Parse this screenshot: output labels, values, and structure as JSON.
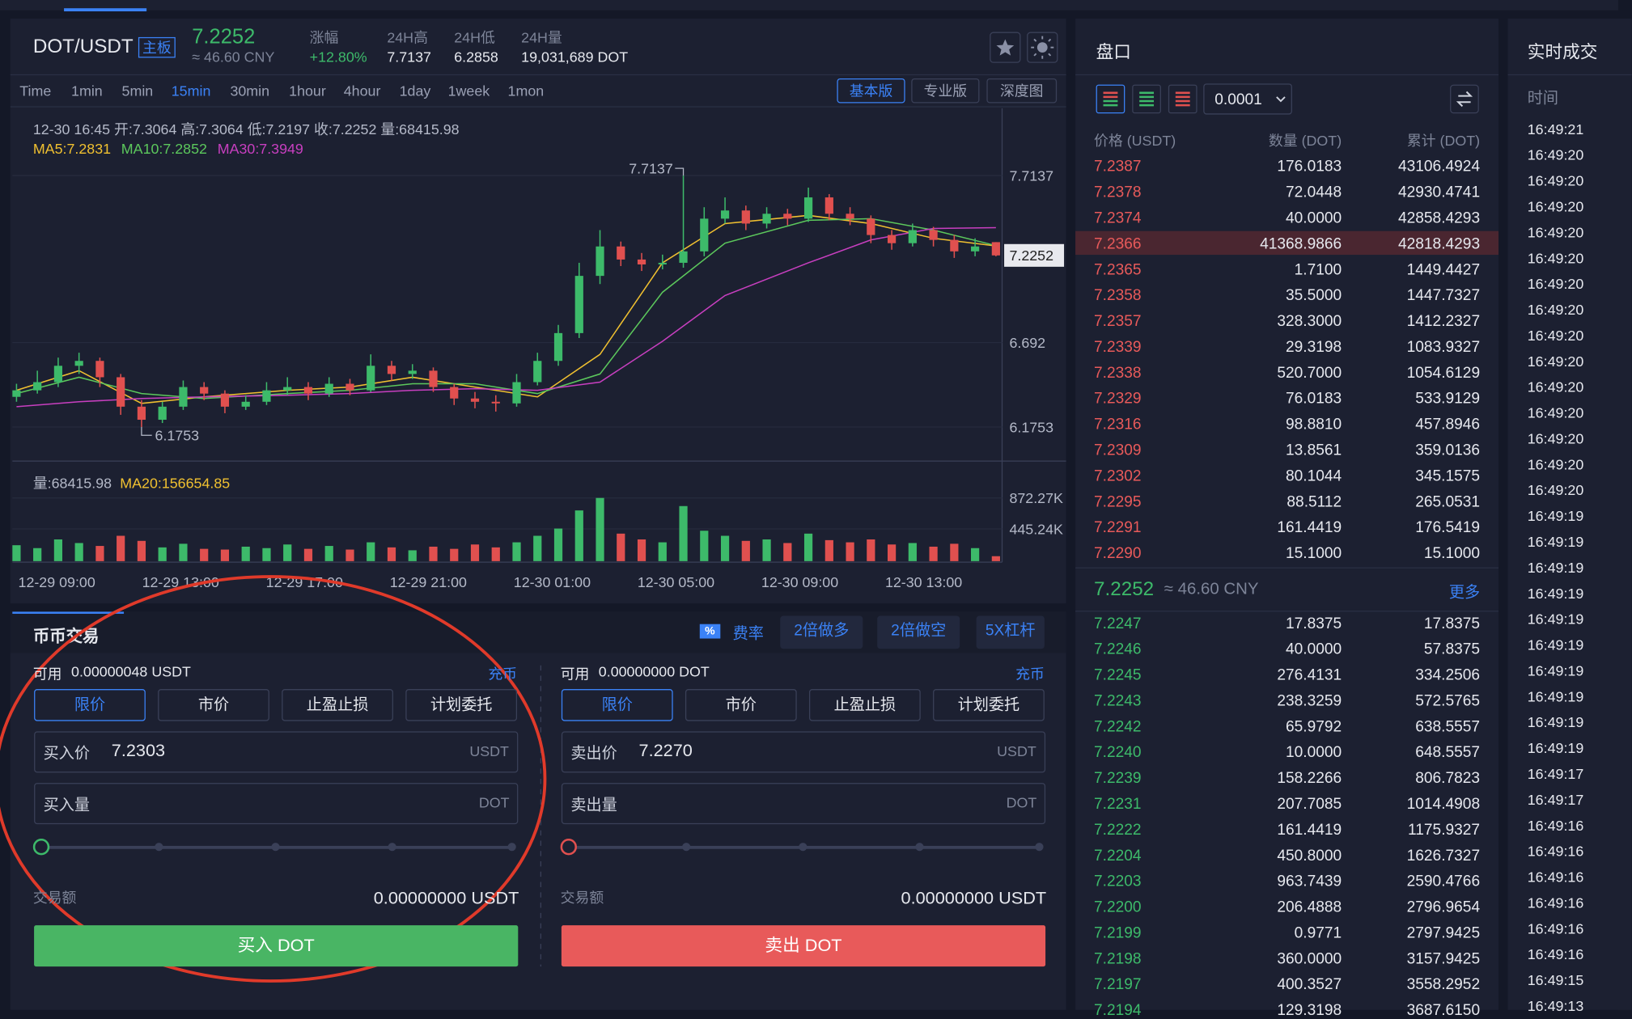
{
  "header": {
    "pair": "DOT/USDT",
    "board": "主板",
    "price": "7.2252",
    "cny": "≈ 46.60 CNY",
    "change_label": "涨幅",
    "change": "+12.80%",
    "high_label": "24H高",
    "high": "7.7137",
    "low_label": "24H低",
    "low": "6.2858",
    "vol_label": "24H量",
    "vol": "19,031,689 DOT"
  },
  "intervals": [
    "Time",
    "1min",
    "5min",
    "15min",
    "30min",
    "1hour",
    "4hour",
    "1day",
    "1week",
    "1mon"
  ],
  "active_interval": 3,
  "views": [
    "基本版",
    "专业版",
    "深度图"
  ],
  "chart_data": {
    "type": "candlestick",
    "info": "12-30 16:45  开:7.3064  高:7.3064  低:7.2197  收:7.2252  量:68415.98",
    "up_color": "#3dba6a",
    "down_color": "#e0504f",
    "candles": [
      [
        6.36,
        6.44,
        6.33,
        6.4
      ],
      [
        6.4,
        6.52,
        6.38,
        6.45
      ],
      [
        6.45,
        6.6,
        6.42,
        6.55
      ],
      [
        6.55,
        6.63,
        6.5,
        6.58
      ],
      [
        6.58,
        6.6,
        6.42,
        6.48
      ],
      [
        6.48,
        6.5,
        6.25,
        6.3
      ],
      [
        6.3,
        6.34,
        6.1753,
        6.22
      ],
      [
        6.22,
        6.33,
        6.2,
        6.3
      ],
      [
        6.3,
        6.46,
        6.28,
        6.42
      ],
      [
        6.42,
        6.45,
        6.34,
        6.38
      ],
      [
        6.38,
        6.4,
        6.26,
        6.3
      ],
      [
        6.3,
        6.37,
        6.28,
        6.33
      ],
      [
        6.33,
        6.45,
        6.31,
        6.4
      ],
      [
        6.4,
        6.48,
        6.37,
        6.42
      ],
      [
        6.42,
        6.45,
        6.34,
        6.38
      ],
      [
        6.38,
        6.48,
        6.36,
        6.44
      ],
      [
        6.44,
        6.47,
        6.37,
        6.4
      ],
      [
        6.4,
        6.62,
        6.39,
        6.55
      ],
      [
        6.55,
        6.58,
        6.46,
        6.5
      ],
      [
        6.5,
        6.56,
        6.47,
        6.52
      ],
      [
        6.52,
        6.54,
        6.39,
        6.42
      ],
      [
        6.42,
        6.44,
        6.31,
        6.35
      ],
      [
        6.35,
        6.39,
        6.29,
        6.33
      ],
      [
        6.33,
        6.37,
        6.27,
        6.32
      ],
      [
        6.32,
        6.5,
        6.3,
        6.45
      ],
      [
        6.45,
        6.63,
        6.43,
        6.58
      ],
      [
        6.58,
        6.8,
        6.55,
        6.75
      ],
      [
        6.75,
        7.18,
        6.72,
        7.1
      ],
      [
        7.1,
        7.38,
        7.05,
        7.28
      ],
      [
        7.28,
        7.31,
        7.16,
        7.2
      ],
      [
        7.2,
        7.24,
        7.13,
        7.17
      ],
      [
        7.17,
        7.23,
        7.14,
        7.18
      ],
      [
        7.18,
        7.7137,
        7.15,
        7.25
      ],
      [
        7.25,
        7.52,
        7.22,
        7.45
      ],
      [
        7.45,
        7.58,
        7.42,
        7.5
      ],
      [
        7.5,
        7.53,
        7.38,
        7.42
      ],
      [
        7.42,
        7.52,
        7.39,
        7.48
      ],
      [
        7.48,
        7.51,
        7.41,
        7.45
      ],
      [
        7.45,
        7.64,
        7.43,
        7.58
      ],
      [
        7.58,
        7.6,
        7.44,
        7.48
      ],
      [
        7.48,
        7.52,
        7.41,
        7.45
      ],
      [
        7.45,
        7.47,
        7.3,
        7.35
      ],
      [
        7.35,
        7.38,
        7.26,
        7.3
      ],
      [
        7.3,
        7.42,
        7.28,
        7.38
      ],
      [
        7.38,
        7.4,
        7.28,
        7.32
      ],
      [
        7.32,
        7.35,
        7.21,
        7.25
      ],
      [
        7.25,
        7.33,
        7.22,
        7.28
      ],
      [
        7.3064,
        7.3064,
        7.2197,
        7.2252
      ]
    ],
    "ma": [
      {
        "label": "MA5:7.2831",
        "color": "#f0c030",
        "values": [
          6.4,
          6.52,
          6.32,
          6.36,
          6.4,
          6.42,
          6.48,
          6.42,
          6.36,
          6.62,
          7.18,
          7.42,
          7.47,
          7.42,
          7.33,
          7.2831
        ]
      },
      {
        "label": "MA10:7.2852",
        "color": "#5cc85c",
        "values": [
          6.38,
          6.48,
          6.38,
          6.35,
          6.38,
          6.4,
          6.44,
          6.44,
          6.38,
          6.5,
          7.0,
          7.3,
          7.44,
          7.45,
          7.38,
          7.2852
        ]
      },
      {
        "label": "MA30:7.3949",
        "color": "#c83fc0",
        "values": [
          6.3,
          6.33,
          6.35,
          6.36,
          6.37,
          6.38,
          6.4,
          6.41,
          6.4,
          6.45,
          6.7,
          6.98,
          7.18,
          7.32,
          7.39,
          7.3949
        ]
      }
    ],
    "ylim": [
      5.967,
      8.125
    ],
    "yticks": [
      6.1753,
      6.692,
      7.7137
    ],
    "volume": {
      "label": "量:68415.98",
      "ma_label": "MA20:156654.85",
      "values": [
        220000,
        180000,
        300000,
        250000,
        210000,
        350000,
        280000,
        190000,
        240000,
        170000,
        160000,
        200000,
        180000,
        230000,
        170000,
        210000,
        160000,
        260000,
        190000,
        150000,
        200000,
        170000,
        230000,
        190000,
        260000,
        350000,
        450000,
        700000,
        872270,
        380000,
        300000,
        260000,
        760000,
        420000,
        350000,
        280000,
        300000,
        250000,
        380000,
        290000,
        260000,
        300000,
        230000,
        250000,
        200000,
        240000,
        180000,
        68415.98
      ],
      "ylim": [
        0,
        1338000
      ],
      "yticks": [
        {
          "value": 445240,
          "label": "445.24K"
        },
        {
          "value": 872270,
          "label": "872.27K"
        }
      ]
    },
    "time_labels": [
      "12-29 09:00",
      "12-29 13:00",
      "12-29 17:00",
      "12-29 21:00",
      "12-30 01:00",
      "12-30 05:00",
      "12-30 09:00",
      "12-30 13:00"
    ]
  },
  "trade": {
    "tab": "币币交易",
    "fee_icon": "%",
    "fee": "费率",
    "actions": [
      "2倍做多",
      "2倍做空",
      "5X杠杆"
    ],
    "buy": {
      "avail_label": "可用",
      "avail": "0.00000048 USDT",
      "deposit": "充币",
      "order_types": [
        "限价",
        "市价",
        "止盈止损",
        "计划委托"
      ],
      "price_label": "买入价",
      "price": "7.2303",
      "price_unit": "USDT",
      "amount_label": "买入量",
      "amount_unit": "DOT",
      "total_label": "交易额",
      "total": "0.00000000 USDT",
      "submit": "买入 DOT"
    },
    "sell": {
      "avail_label": "可用",
      "avail": "0.00000000 DOT",
      "deposit": "充币",
      "order_types": [
        "限价",
        "市价",
        "止盈止损",
        "计划委托"
      ],
      "price_label": "卖出价",
      "price": "7.2270",
      "price_unit": "USDT",
      "amount_label": "卖出量",
      "amount_unit": "DOT",
      "total_label": "交易额",
      "total": "0.00000000 USDT",
      "submit": "卖出 DOT"
    }
  },
  "orderbook": {
    "title": "盘口",
    "precision": "0.0001",
    "headers": [
      "价格 (USDT)",
      "数量 (DOT)",
      "累计 (DOT)"
    ],
    "asks": [
      [
        "7.2387",
        "176.0183",
        "43106.4924"
      ],
      [
        "7.2378",
        "72.0448",
        "42930.4741"
      ],
      [
        "7.2374",
        "40.0000",
        "42858.4293"
      ],
      [
        "7.2366",
        "41368.9866",
        "42818.4293"
      ],
      [
        "7.2365",
        "1.7100",
        "1449.4427"
      ],
      [
        "7.2358",
        "35.5000",
        "1447.7327"
      ],
      [
        "7.2357",
        "328.3000",
        "1412.2327"
      ],
      [
        "7.2339",
        "29.3198",
        "1083.9327"
      ],
      [
        "7.2338",
        "520.7000",
        "1054.6129"
      ],
      [
        "7.2329",
        "76.0183",
        "533.9129"
      ],
      [
        "7.2316",
        "98.8810",
        "457.8946"
      ],
      [
        "7.2309",
        "13.8561",
        "359.0136"
      ],
      [
        "7.2302",
        "80.1044",
        "345.1575"
      ],
      [
        "7.2295",
        "88.5112",
        "265.0531"
      ],
      [
        "7.2291",
        "161.4419",
        "176.5419"
      ],
      [
        "7.2290",
        "15.1000",
        "15.1000"
      ]
    ],
    "mid_price": "7.2252",
    "mid_cny": "≈ 46.60 CNY",
    "more": "更多",
    "bids": [
      [
        "7.2247",
        "17.8375",
        "17.8375"
      ],
      [
        "7.2246",
        "40.0000",
        "57.8375"
      ],
      [
        "7.2245",
        "276.4131",
        "334.2506"
      ],
      [
        "7.2243",
        "238.3259",
        "572.5765"
      ],
      [
        "7.2242",
        "65.9792",
        "638.5557"
      ],
      [
        "7.2240",
        "10.0000",
        "648.5557"
      ],
      [
        "7.2239",
        "158.2266",
        "806.7823"
      ],
      [
        "7.2231",
        "207.7085",
        "1014.4908"
      ],
      [
        "7.2222",
        "161.4419",
        "1175.9327"
      ],
      [
        "7.2204",
        "450.8000",
        "1626.7327"
      ],
      [
        "7.2203",
        "963.7439",
        "2590.4766"
      ],
      [
        "7.2200",
        "206.4888",
        "2796.9654"
      ],
      [
        "7.2199",
        "0.9771",
        "2797.9425"
      ],
      [
        "7.2198",
        "360.0000",
        "3157.9425"
      ],
      [
        "7.2197",
        "400.3527",
        "3558.2952"
      ],
      [
        "7.2194",
        "129.3198",
        "3687.6150"
      ]
    ]
  },
  "trades": {
    "title": "实时成交",
    "time_header": "时间",
    "times": [
      "16:49:21",
      "16:49:20",
      "16:49:20",
      "16:49:20",
      "16:49:20",
      "16:49:20",
      "16:49:20",
      "16:49:20",
      "16:49:20",
      "16:49:20",
      "16:49:20",
      "16:49:20",
      "16:49:20",
      "16:49:20",
      "16:49:20",
      "16:49:19",
      "16:49:19",
      "16:49:19",
      "16:49:19",
      "16:49:19",
      "16:49:19",
      "16:49:19",
      "16:49:19",
      "16:49:19",
      "16:49:19",
      "16:49:17",
      "16:49:17",
      "16:49:16",
      "16:49:16",
      "16:49:16",
      "16:49:16",
      "16:49:16",
      "16:49:16",
      "16:49:15",
      "16:49:13"
    ]
  }
}
